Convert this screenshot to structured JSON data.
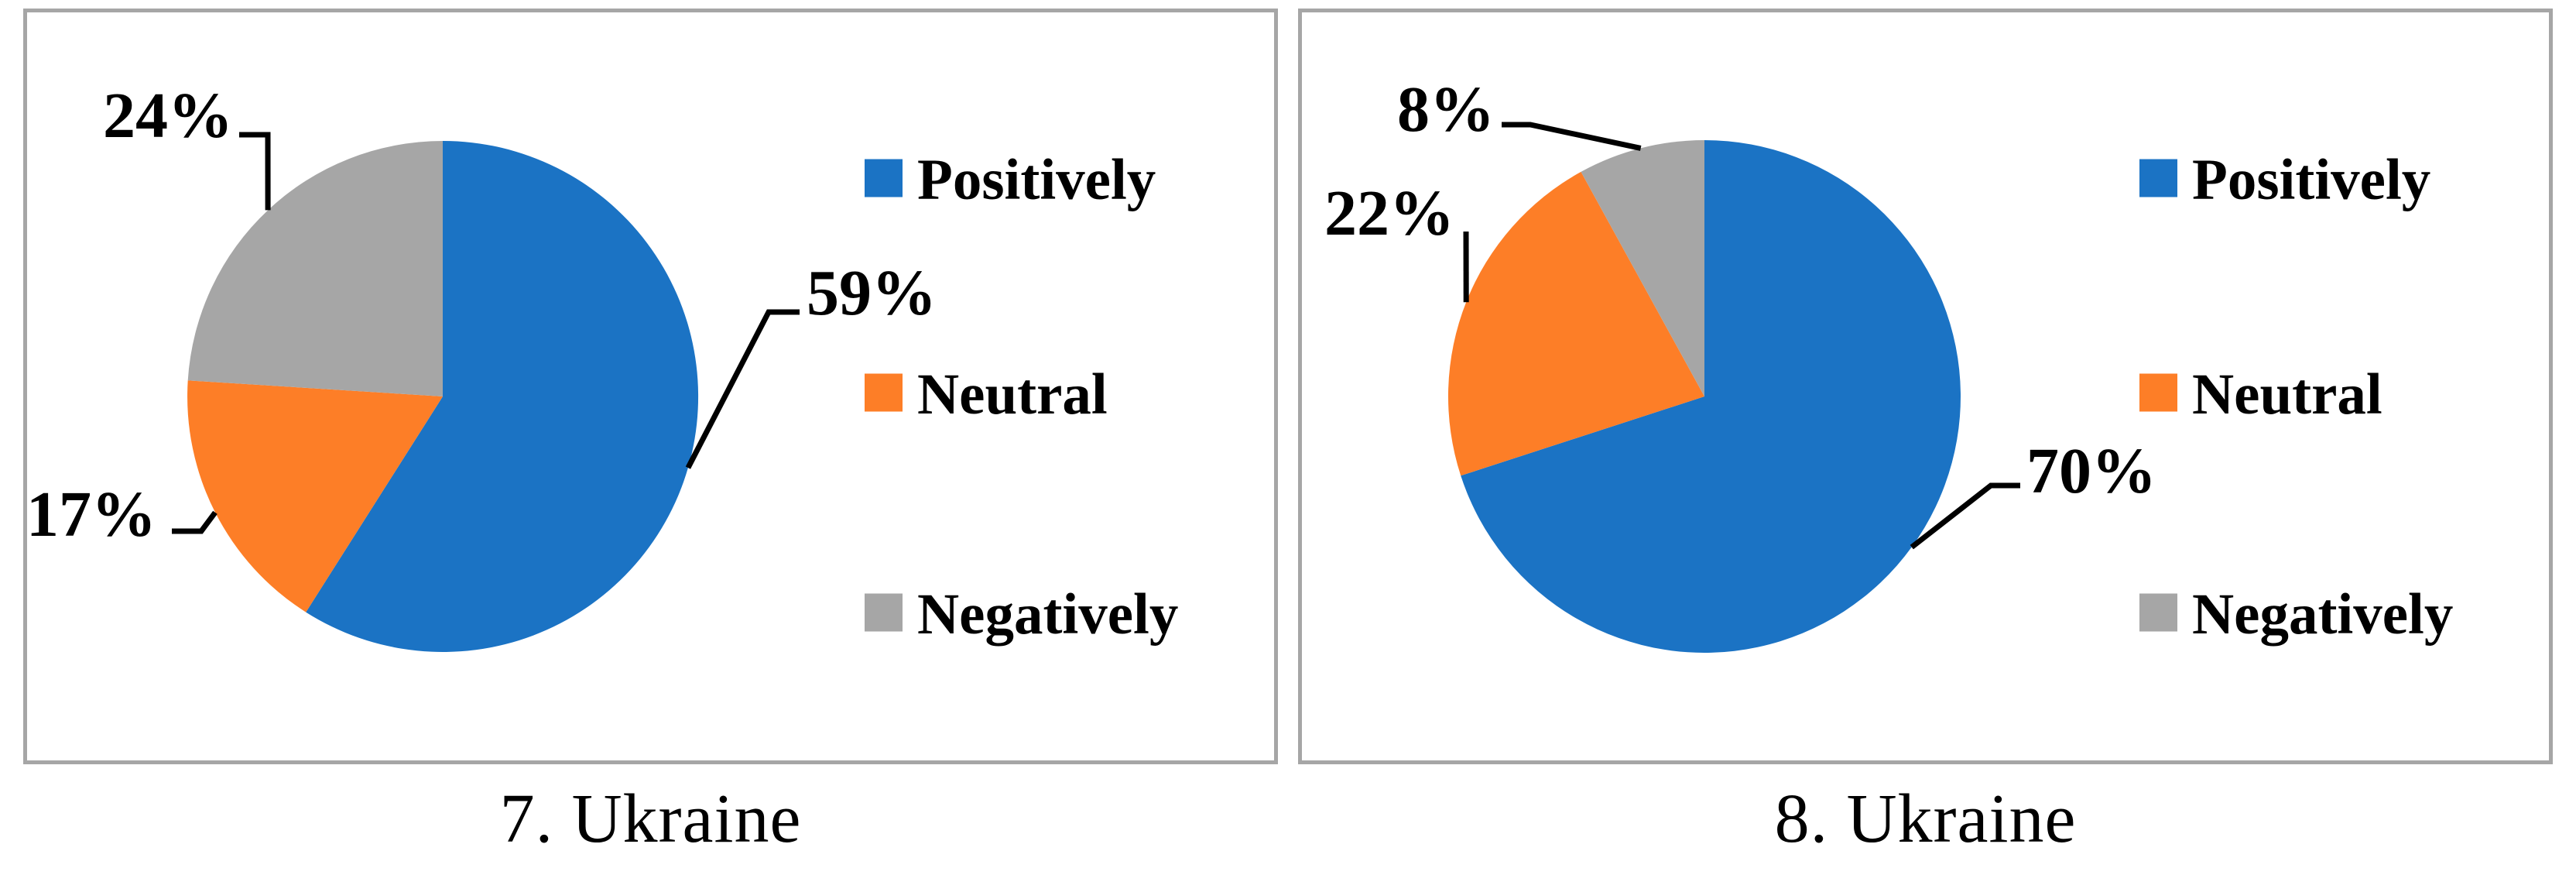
{
  "figure": {
    "panel_border_color": "#a6a6a6",
    "background_color": "#ffffff",
    "text_color": "#000000"
  },
  "chart_data": [
    {
      "type": "pie",
      "title": "7. Ukraine",
      "categories": [
        "Positively",
        "Neutral",
        "Negatively"
      ],
      "values": [
        59,
        17,
        24
      ],
      "value_labels": [
        "59%",
        "17%",
        "24%"
      ],
      "colors": [
        "#1b73c4",
        "#fd7e27",
        "#a6a6a6"
      ],
      "legend_position": "right",
      "start_angle_deg": 0,
      "direction": "clockwise",
      "total": 100
    },
    {
      "type": "pie",
      "title": "8. Ukraine",
      "categories": [
        "Positively",
        "Neutral",
        "Negatively"
      ],
      "values": [
        70,
        22,
        8
      ],
      "value_labels": [
        "70%",
        "22%",
        "8%"
      ],
      "colors": [
        "#1b73c4",
        "#fd7e27",
        "#a6a6a6"
      ],
      "legend_position": "right",
      "start_angle_deg": 0,
      "direction": "clockwise",
      "total": 100
    }
  ]
}
